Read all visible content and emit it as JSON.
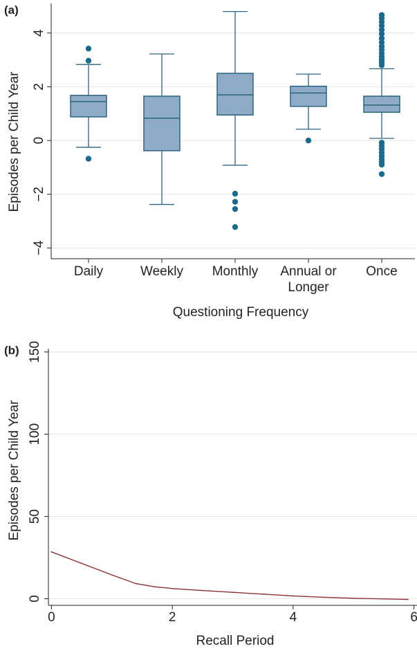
{
  "chart_data": [
    {
      "type": "box",
      "panel_label": "(a)",
      "xlabel": "Questioning Frequency",
      "ylabel": "Episodes per Child Year",
      "ylim": [
        -4.4,
        5.1
      ],
      "yticks": [
        "−4",
        "−2",
        "0",
        "2",
        "4"
      ],
      "ytick_values": [
        -4,
        -2,
        0,
        2,
        4
      ],
      "grid": true,
      "colors": {
        "box_fill": "#8fabc7",
        "box_stroke": "#2c6380",
        "outlier": "#1e6a8c",
        "grid": "#e6e6e6"
      },
      "categories": [
        {
          "label_lines": [
            "Daily"
          ],
          "whisker_low": -0.25,
          "q1": 0.88,
          "median": 1.45,
          "q3": 1.68,
          "whisker_high": 2.83,
          "outliers": [
            3.42,
            2.97,
            -0.68
          ]
        },
        {
          "label_lines": [
            "Weekly"
          ],
          "whisker_low": -2.38,
          "q1": -0.38,
          "median": 0.83,
          "q3": 1.65,
          "whisker_high": 3.22,
          "outliers": []
        },
        {
          "label_lines": [
            "Monthly"
          ],
          "whisker_low": -0.92,
          "q1": 0.95,
          "median": 1.7,
          "q3": 2.5,
          "whisker_high": 4.8,
          "outliers": [
            -1.98,
            -2.28,
            -2.55,
            -3.22
          ]
        },
        {
          "label_lines": [
            "Annual or",
            "Longer"
          ],
          "whisker_low": 0.42,
          "q1": 1.27,
          "median": 1.77,
          "q3": 2.02,
          "whisker_high": 2.47,
          "outliers": [
            0.0
          ]
        },
        {
          "label_lines": [
            "Once"
          ],
          "whisker_low": 0.08,
          "q1": 1.05,
          "median": 1.32,
          "q3": 1.65,
          "whisker_high": 2.67,
          "outliers": [
            4.67,
            4.55,
            4.42,
            4.28,
            4.12,
            3.97,
            3.8,
            3.65,
            3.5,
            3.38,
            3.25,
            3.12,
            3.0,
            2.9,
            2.8,
            -0.08,
            -0.2,
            -0.32,
            -0.45,
            -0.58,
            -0.7,
            -0.8,
            -0.9,
            -1.25
          ]
        }
      ]
    },
    {
      "type": "line",
      "panel_label": "(b)",
      "xlabel": "Recall Period",
      "ylabel": "Episodes per Child Year",
      "xlim": [
        -0.05,
        6.05
      ],
      "ylim": [
        -4,
        152
      ],
      "xticks": [
        0,
        2,
        4,
        6
      ],
      "yticks": [
        0,
        50,
        100,
        150
      ],
      "grid": true,
      "colors": {
        "line": "#8b2e2e",
        "grid": "#e6e6e6"
      },
      "series": [
        {
          "x": [
            0,
            0.5,
            1.0,
            1.4,
            1.7,
            2.0,
            2.5,
            3.0,
            3.5,
            4.0,
            4.5,
            5.0,
            5.5,
            5.9
          ],
          "values": [
            28.5,
            21.5,
            14.5,
            9.2,
            7.3,
            6.2,
            5.0,
            3.9,
            2.8,
            1.7,
            0.9,
            0.3,
            -0.1,
            -0.4
          ]
        }
      ]
    }
  ]
}
